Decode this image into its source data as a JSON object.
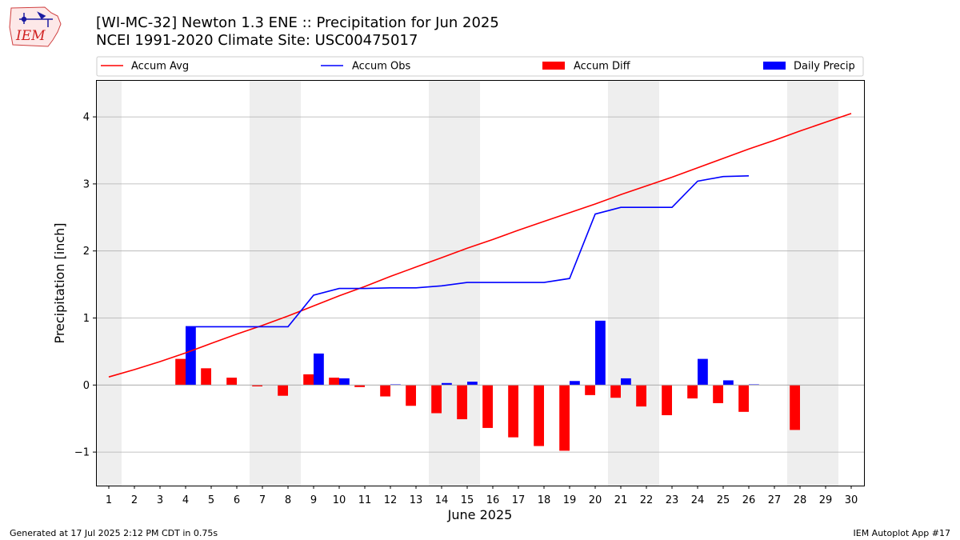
{
  "logo": {
    "text": "IEM"
  },
  "header": {
    "title_line1": "[WI-MC-32] Newton 1.3 ENE :: Precipitation for Jun 2025",
    "title_line2": "NCEI 1991-2020 Climate Site: USC00475017"
  },
  "footer": {
    "left": "Generated at 17 Jul 2025 2:12 PM CDT in 0.75s",
    "right": "IEM Autoplot App #17"
  },
  "chart_data": {
    "type": "bar",
    "xlabel": "June 2025",
    "ylabel": "Precipitation [inch]",
    "xlim": [
      0.5,
      30.5
    ],
    "ylim": [
      -1.5,
      4.55
    ],
    "x_ticks": [
      1,
      2,
      3,
      4,
      5,
      6,
      7,
      8,
      9,
      10,
      11,
      12,
      13,
      14,
      15,
      16,
      17,
      18,
      19,
      20,
      21,
      22,
      23,
      24,
      25,
      26,
      27,
      28,
      29,
      30
    ],
    "y_ticks": [
      -1,
      0,
      1,
      2,
      3,
      4
    ],
    "grid": "horizontal",
    "weekend_shading": [
      [
        0.5,
        1.5
      ],
      [
        6.5,
        8.5
      ],
      [
        13.5,
        15.5
      ],
      [
        20.5,
        22.5
      ],
      [
        27.5,
        29.5
      ]
    ],
    "legend_position": "top",
    "colors": {
      "avg": "#ff0000",
      "obs": "#0000ff",
      "diff": "#ff0000",
      "daily": "#0000ff",
      "shade": "#eeeeee",
      "grid": "#b0b0b0"
    },
    "series": [
      {
        "name": "Accum Avg",
        "kind": "line",
        "x": [
          1,
          2,
          3,
          4,
          5,
          6,
          7,
          8,
          9,
          10,
          11,
          12,
          13,
          14,
          15,
          16,
          17,
          18,
          19,
          20,
          21,
          22,
          23,
          24,
          25,
          26,
          27,
          28,
          29,
          30
        ],
        "values": [
          0.12,
          0.23,
          0.35,
          0.48,
          0.62,
          0.76,
          0.89,
          1.03,
          1.18,
          1.33,
          1.47,
          1.62,
          1.76,
          1.9,
          2.04,
          2.17,
          2.31,
          2.44,
          2.57,
          2.7,
          2.84,
          2.97,
          3.1,
          3.24,
          3.38,
          3.52,
          3.65,
          3.79,
          3.92,
          4.05
        ]
      },
      {
        "name": "Accum Obs",
        "kind": "line",
        "x": [
          4,
          5,
          6,
          7,
          8,
          9,
          10,
          11,
          12,
          13,
          14,
          15,
          16,
          17,
          18,
          19,
          20,
          21,
          22,
          23,
          24,
          25,
          26
        ],
        "values": [
          0.87,
          0.87,
          0.87,
          0.87,
          0.87,
          1.34,
          1.44,
          1.44,
          1.45,
          1.45,
          1.48,
          1.53,
          1.53,
          1.53,
          1.53,
          1.59,
          2.55,
          2.65,
          2.65,
          2.65,
          3.04,
          3.11,
          3.12
        ]
      },
      {
        "name": "Accum Diff",
        "kind": "bar",
        "x": [
          4,
          5,
          6,
          7,
          8,
          9,
          10,
          11,
          12,
          13,
          14,
          15,
          16,
          17,
          18,
          19,
          20,
          21,
          22,
          23,
          24,
          25,
          26,
          28
        ],
        "values": [
          0.39,
          0.25,
          0.11,
          -0.02,
          -0.16,
          0.16,
          0.11,
          -0.03,
          -0.17,
          -0.31,
          -0.42,
          -0.51,
          -0.64,
          -0.78,
          -0.91,
          -0.98,
          -0.15,
          -0.19,
          -0.32,
          -0.45,
          -0.2,
          -0.27,
          -0.4,
          -0.67
        ]
      },
      {
        "name": "Daily Precip",
        "kind": "bar",
        "x": [
          4,
          9,
          10,
          12,
          14,
          15,
          19,
          20,
          21,
          24,
          25,
          26
        ],
        "values": [
          0.87,
          0.47,
          0.1,
          0.01,
          0.03,
          0.05,
          0.06,
          0.96,
          0.1,
          0.39,
          0.07,
          0.01
        ]
      }
    ]
  }
}
